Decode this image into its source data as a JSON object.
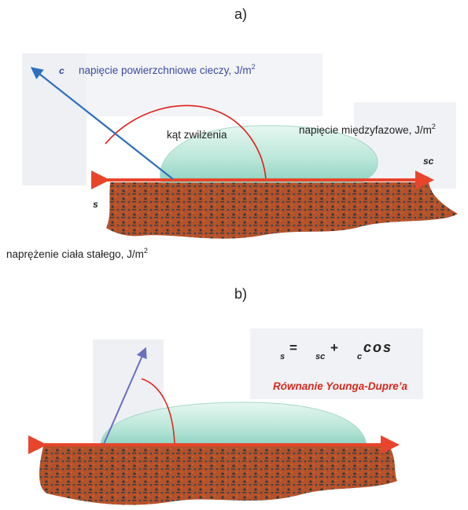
{
  "panel_a": {
    "label": "a)",
    "liquid_vector_symbol": "c",
    "liquid_surface_tension_text": "napięcie powierzchniowe cieczy, J/m",
    "liquid_surface_tension_exp": "2",
    "contact_angle_text": "kąt zwilżenia",
    "interfacial_tension_text": "napięcie międzyfazowe, J/m",
    "interfacial_tension_exp": "2",
    "interfacial_vector_symbol": "sc",
    "solid_vector_symbol": "s",
    "solid_stress_text": "naprężenie ciała stałego, J/m",
    "solid_stress_exp": "2"
  },
  "panel_b": {
    "label": "b)",
    "eq_s": "s",
    "eq_equals": "=",
    "eq_sc": "sc",
    "eq_plus": "+",
    "eq_c": "c",
    "eq_cos": "cos",
    "equation_name": "Równanie Younga-Dupre’a"
  },
  "colors": {
    "arrow_red": "#e8452c",
    "liquid_vector_blue": "#2f6fbe",
    "liquid_vector_b": "#6a6fc0",
    "angle_arc": "#e0201a",
    "label_blue": "#3b4aa0",
    "equation_red": "#d42a20",
    "droplet_fill": "#bfe8dc",
    "ground": "#b5522a"
  }
}
